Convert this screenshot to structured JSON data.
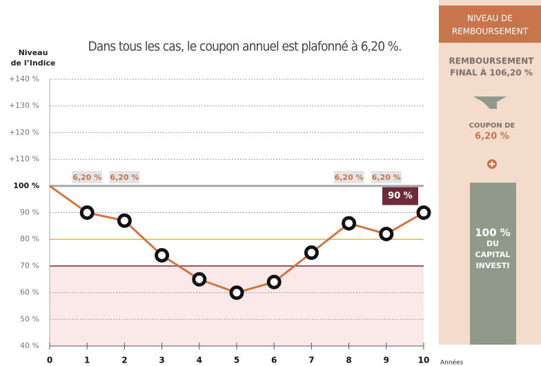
{
  "chart_data": {
    "type": "line",
    "title": "Dans tous les cas, le coupon annuel est plafonné à 6,20 %.",
    "ylabel": [
      "Niveau",
      "de l’Indice"
    ],
    "xlabel": "Années",
    "x": [
      0,
      1,
      2,
      3,
      4,
      5,
      6,
      7,
      8,
      9,
      10
    ],
    "values": [
      100,
      90,
      87,
      74,
      65,
      60,
      64,
      75,
      86,
      82,
      90
    ],
    "color": "#d5723f",
    "xlim": [
      0,
      10
    ],
    "xticks": [
      0,
      1,
      2,
      3,
      4,
      5,
      6,
      7,
      8,
      9,
      10
    ],
    "ylim": [
      40,
      140
    ],
    "yticks": [
      {
        "value": 40,
        "label": "40 %"
      },
      {
        "value": 50,
        "label": "50 %"
      },
      {
        "value": 60,
        "label": "60 %"
      },
      {
        "value": 70,
        "label": "70 %"
      },
      {
        "value": 80,
        "label": "80 %"
      },
      {
        "value": 90,
        "label": "90 %"
      },
      {
        "value": 100,
        "label": "100 %"
      },
      {
        "value": 110,
        "label": "+110 %"
      },
      {
        "value": 120,
        "label": "+120 %"
      },
      {
        "value": 130,
        "label": "+130 %"
      },
      {
        "value": 140,
        "label": "+140 %"
      }
    ],
    "grid": true,
    "reference_lines": [
      {
        "value": 100,
        "color": "#a9a9a9"
      },
      {
        "value": 80,
        "color": "#d9c22e"
      },
      {
        "value": 70,
        "color": "#7a2030"
      }
    ],
    "shaded_below": 70,
    "coupon_labels": [
      {
        "x": 1,
        "label": "6,20 %"
      },
      {
        "x": 2,
        "label": "6,20 %"
      },
      {
        "x": 8,
        "label": "6,20 %"
      },
      {
        "x": 9,
        "label": "6,20 %"
      }
    ],
    "final_label": "90 %",
    "panel": {
      "header": [
        "NIVEAU DE",
        "REMBOURSEMENT"
      ],
      "final": [
        "REMBOURSEMENT",
        "FINAL À 106,20 %"
      ],
      "coupon": [
        "COUPON DE",
        "6,20 %"
      ],
      "capital": [
        "100 %",
        "DU",
        "CAPITAL",
        "INVESTI"
      ]
    }
  }
}
